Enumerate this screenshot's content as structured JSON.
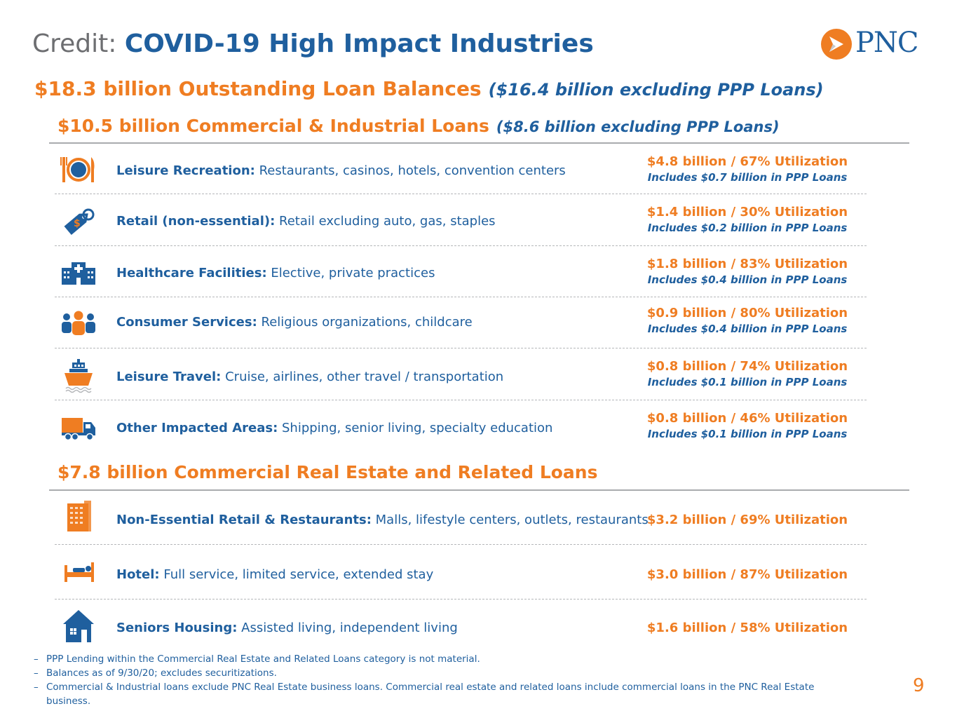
{
  "title": {
    "prefix": "Credit:",
    "main": "COVID-19 High Impact Industries"
  },
  "logo": {
    "text": "PNC"
  },
  "headline": {
    "amount": "$18.3 billion Outstanding Loan Balances",
    "excluding": "($16.4 billion excluding PPP Loans)"
  },
  "ci_section": {
    "heading": "$10.5 billion Commercial & Industrial Loans",
    "excluding": "($8.6 billion excluding PPP Loans)",
    "rows": [
      {
        "icon": "restaurant-plate-icon",
        "category": "Leisure Recreation:",
        "detail": " Restaurants, casinos, hotels, convention centers",
        "amount": "$4.8 billion / 67% Utilization",
        "ppp": "Includes $0.7 billion in PPP Loans"
      },
      {
        "icon": "price-tag-icon",
        "category": "Retail (non-essential):",
        "detail": " Retail excluding auto, gas, staples",
        "amount": "$1.4 billion / 30% Utilization",
        "ppp": "Includes $0.2 billion in PPP Loans"
      },
      {
        "icon": "hospital-icon",
        "category": "Healthcare Facilities:",
        "detail": " Elective, private practices",
        "amount": "$1.8 billion / 83% Utilization",
        "ppp": "Includes $0.4 billion in PPP Loans"
      },
      {
        "icon": "people-group-icon",
        "category": "Consumer Services:",
        "detail": " Religious organizations, childcare",
        "amount": "$0.9 billion / 80% Utilization",
        "ppp": "Includes $0.4 billion in PPP Loans"
      },
      {
        "icon": "cruise-ship-icon",
        "category": "Leisure Travel:",
        "detail": " Cruise, airlines, other travel / transportation",
        "amount": "$0.8 billion / 74% Utilization",
        "ppp": "Includes $0.1 billion in PPP Loans"
      },
      {
        "icon": "delivery-truck-icon",
        "category": "Other Impacted Areas:",
        "detail": " Shipping, senior living, specialty education",
        "amount": "$0.8 billion / 46% Utilization",
        "ppp": "Includes $0.1 billion in PPP Loans"
      }
    ]
  },
  "cre_section": {
    "heading": "$7.8 billion Commercial Real Estate and Related Loans",
    "rows": [
      {
        "icon": "office-building-icon",
        "category": "Non-Essential Retail & Restaurants:",
        "detail": " Malls, lifestyle centers, outlets, restaurants",
        "amount": "$3.2 billion / 69% Utilization"
      },
      {
        "icon": "hotel-bed-icon",
        "category": "Hotel:",
        "detail": " Full service, limited service, extended stay",
        "amount": "$3.0 billion / 87% Utilization"
      },
      {
        "icon": "house-icon",
        "category": "Seniors Housing:",
        "detail": " Assisted living, independent living",
        "amount": "$1.6 billion / 58% Utilization"
      }
    ]
  },
  "footnotes": [
    "PPP Lending within the Commercial Real Estate and Related Loans category is not material.",
    "Balances as of 9/30/20; excludes securitizations.",
    "Commercial & Industrial loans exclude PNC Real Estate business loans. Commercial real estate and related loans include commercial loans in the PNC Real Estate business."
  ],
  "page_number": "9",
  "colors": {
    "orange": "#ef7d22",
    "blue": "#1f5f9e",
    "gray": "#6d6e71"
  }
}
